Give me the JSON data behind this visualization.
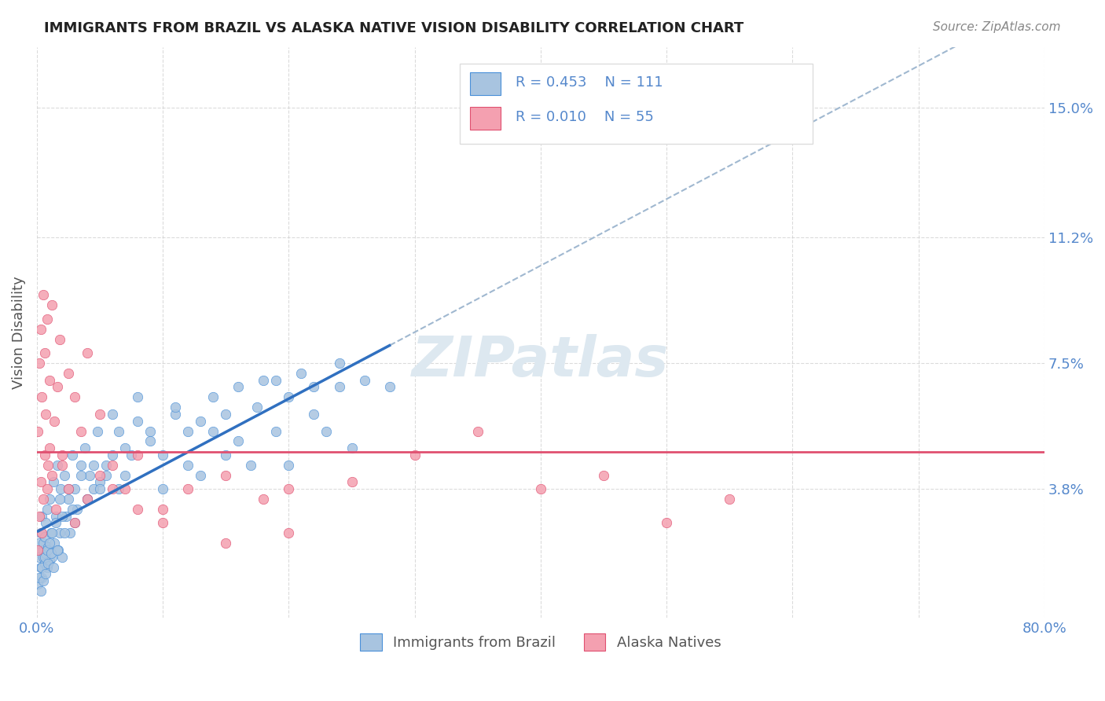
{
  "title": "IMMIGRANTS FROM BRAZIL VS ALASKA NATIVE VISION DISABILITY CORRELATION CHART",
  "source_text": "Source: ZipAtlas.com",
  "xlabel": "",
  "ylabel": "Vision Disability",
  "legend_label_blue": "Immigrants from Brazil",
  "legend_label_pink": "Alaska Natives",
  "r_blue": "R = 0.453",
  "n_blue": "N = 111",
  "r_pink": "R = 0.010",
  "n_pink": "N = 55",
  "xlim": [
    0.0,
    0.8
  ],
  "ylim": [
    0.0,
    0.168
  ],
  "xticks": [
    0.0,
    0.1,
    0.2,
    0.3,
    0.4,
    0.5,
    0.6,
    0.7,
    0.8
  ],
  "xtick_labels": [
    "0.0%",
    "",
    "",
    "",
    "",
    "",
    "",
    "",
    "80.0%"
  ],
  "ytick_positions": [
    0.038,
    0.075,
    0.112,
    0.15
  ],
  "ytick_labels": [
    "3.8%",
    "7.5%",
    "11.2%",
    "15.0%"
  ],
  "background_color": "#ffffff",
  "grid_color": "#cccccc",
  "blue_color": "#a8c4e0",
  "blue_dark": "#4a90d9",
  "pink_color": "#f4a0b0",
  "pink_dark": "#e05070",
  "trend_blue_color": "#3070c0",
  "trend_pink_color": "#e05070",
  "trend_dashed_color": "#a0b8d0",
  "title_color": "#222222",
  "axis_label_color": "#555555",
  "tick_color": "#5588cc",
  "watermark_color": "#dde8f0",
  "blue_scatter": {
    "x": [
      0.001,
      0.002,
      0.002,
      0.003,
      0.003,
      0.004,
      0.004,
      0.005,
      0.005,
      0.005,
      0.006,
      0.006,
      0.007,
      0.007,
      0.008,
      0.008,
      0.009,
      0.01,
      0.01,
      0.011,
      0.012,
      0.013,
      0.014,
      0.015,
      0.016,
      0.017,
      0.018,
      0.019,
      0.02,
      0.022,
      0.023,
      0.025,
      0.026,
      0.028,
      0.03,
      0.032,
      0.035,
      0.038,
      0.04,
      0.042,
      0.045,
      0.048,
      0.05,
      0.055,
      0.06,
      0.065,
      0.07,
      0.075,
      0.08,
      0.09,
      0.1,
      0.11,
      0.12,
      0.13,
      0.14,
      0.15,
      0.16,
      0.17,
      0.18,
      0.19,
      0.2,
      0.22,
      0.23,
      0.24,
      0.25,
      0.001,
      0.002,
      0.003,
      0.004,
      0.005,
      0.006,
      0.007,
      0.008,
      0.009,
      0.01,
      0.011,
      0.012,
      0.013,
      0.015,
      0.016,
      0.018,
      0.02,
      0.022,
      0.025,
      0.028,
      0.03,
      0.035,
      0.04,
      0.045,
      0.05,
      0.055,
      0.06,
      0.065,
      0.07,
      0.08,
      0.09,
      0.1,
      0.11,
      0.12,
      0.13,
      0.14,
      0.15,
      0.16,
      0.175,
      0.19,
      0.2,
      0.21,
      0.22,
      0.24,
      0.26,
      0.28
    ],
    "y": [
      0.02,
      0.018,
      0.022,
      0.015,
      0.025,
      0.012,
      0.03,
      0.018,
      0.02,
      0.022,
      0.016,
      0.024,
      0.019,
      0.028,
      0.015,
      0.032,
      0.021,
      0.017,
      0.035,
      0.025,
      0.018,
      0.04,
      0.022,
      0.03,
      0.045,
      0.02,
      0.025,
      0.038,
      0.018,
      0.042,
      0.03,
      0.035,
      0.025,
      0.048,
      0.038,
      0.032,
      0.045,
      0.05,
      0.035,
      0.042,
      0.038,
      0.055,
      0.04,
      0.045,
      0.06,
      0.038,
      0.042,
      0.048,
      0.065,
      0.055,
      0.038,
      0.06,
      0.045,
      0.042,
      0.055,
      0.048,
      0.052,
      0.045,
      0.07,
      0.055,
      0.045,
      0.06,
      0.055,
      0.068,
      0.05,
      0.01,
      0.012,
      0.008,
      0.015,
      0.011,
      0.018,
      0.013,
      0.02,
      0.016,
      0.022,
      0.019,
      0.025,
      0.015,
      0.028,
      0.02,
      0.035,
      0.03,
      0.025,
      0.038,
      0.032,
      0.028,
      0.042,
      0.035,
      0.045,
      0.038,
      0.042,
      0.048,
      0.055,
      0.05,
      0.058,
      0.052,
      0.048,
      0.062,
      0.055,
      0.058,
      0.065,
      0.06,
      0.068,
      0.062,
      0.07,
      0.065,
      0.072,
      0.068,
      0.075,
      0.07,
      0.068
    ]
  },
  "pink_scatter": {
    "x": [
      0.001,
      0.002,
      0.003,
      0.004,
      0.005,
      0.006,
      0.007,
      0.008,
      0.009,
      0.01,
      0.012,
      0.014,
      0.016,
      0.018,
      0.02,
      0.025,
      0.03,
      0.035,
      0.04,
      0.05,
      0.06,
      0.07,
      0.08,
      0.1,
      0.12,
      0.15,
      0.18,
      0.2,
      0.25,
      0.3,
      0.35,
      0.4,
      0.45,
      0.5,
      0.55,
      0.001,
      0.002,
      0.003,
      0.004,
      0.005,
      0.006,
      0.008,
      0.01,
      0.012,
      0.015,
      0.02,
      0.025,
      0.03,
      0.04,
      0.05,
      0.06,
      0.08,
      0.1,
      0.15,
      0.2
    ],
    "y": [
      0.055,
      0.075,
      0.085,
      0.065,
      0.095,
      0.078,
      0.06,
      0.088,
      0.045,
      0.07,
      0.092,
      0.058,
      0.068,
      0.082,
      0.048,
      0.072,
      0.065,
      0.055,
      0.078,
      0.06,
      0.045,
      0.038,
      0.048,
      0.032,
      0.038,
      0.042,
      0.035,
      0.038,
      0.04,
      0.048,
      0.055,
      0.038,
      0.042,
      0.028,
      0.035,
      0.02,
      0.03,
      0.04,
      0.025,
      0.035,
      0.048,
      0.038,
      0.05,
      0.042,
      0.032,
      0.045,
      0.038,
      0.028,
      0.035,
      0.042,
      0.038,
      0.032,
      0.028,
      0.022,
      0.025
    ]
  }
}
